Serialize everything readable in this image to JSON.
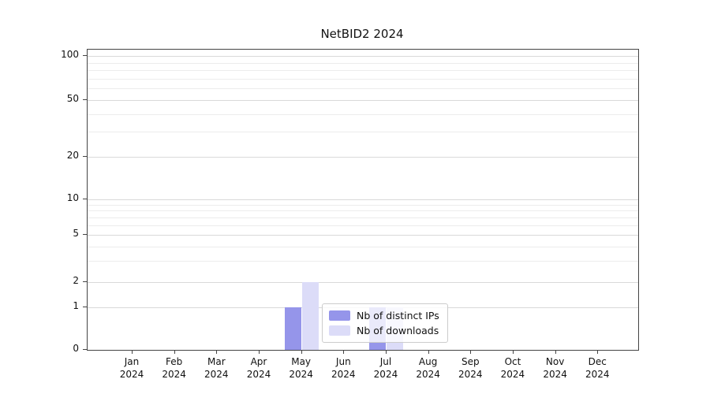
{
  "title": "NetBID2 2024",
  "chart_data": {
    "type": "bar",
    "title": "NetBID2 2024",
    "categories": [
      "Jan",
      "Feb",
      "Mar",
      "Apr",
      "May",
      "Jun",
      "Jul",
      "Aug",
      "Sep",
      "Oct",
      "Nov",
      "Dec"
    ],
    "year_label": "2024",
    "yticks": [
      0,
      1,
      2,
      5,
      10,
      20,
      50,
      100
    ],
    "ylim": [
      0,
      110
    ],
    "yscale": "log-like",
    "grid": "horizontal-minor-and-major",
    "series": [
      {
        "name": "Nb of distinct IPs",
        "color": "#9595ea",
        "values": [
          0,
          0,
          0,
          0,
          1,
          0,
          1,
          0,
          0,
          0,
          0,
          0
        ]
      },
      {
        "name": "Nb of downloads",
        "color": "#dcdcf8",
        "values": [
          0,
          0,
          0,
          0,
          2,
          0,
          1,
          0,
          0,
          0,
          0,
          0
        ]
      }
    ],
    "legend": {
      "position": "inside-bottom-center",
      "labels": [
        "Nb of distinct IPs",
        "Nb of downloads"
      ]
    }
  }
}
